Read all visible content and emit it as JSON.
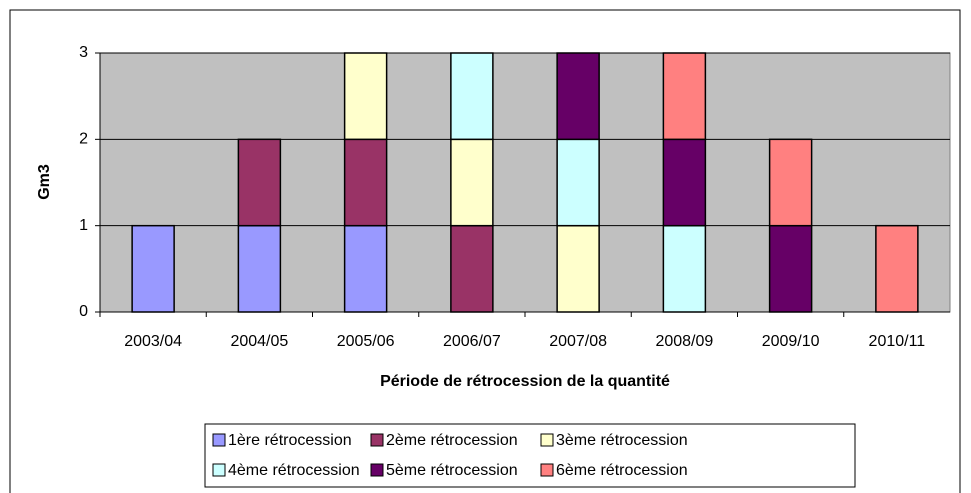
{
  "chart_data": {
    "type": "bar",
    "stacked": true,
    "xlabel": "Période de rétrocession de la quantité",
    "ylabel": "Gm3",
    "categories": [
      "2003/04",
      "2004/05",
      "2005/06",
      "2006/07",
      "2007/08",
      "2008/09",
      "2009/10",
      "2010/11"
    ],
    "series": [
      {
        "name": "1ère rétrocession",
        "color": "#9999ff",
        "values": [
          1,
          1,
          1,
          0,
          0,
          0,
          0,
          0
        ]
      },
      {
        "name": "2ème rétrocession",
        "color": "#993366",
        "values": [
          0,
          1,
          1,
          1,
          0,
          0,
          0,
          0
        ]
      },
      {
        "name": "3ème rétrocession",
        "color": "#ffffcc",
        "values": [
          0,
          0,
          1,
          1,
          1,
          0,
          0,
          0
        ]
      },
      {
        "name": "4ème rétrocession",
        "color": "#ccffff",
        "values": [
          0,
          0,
          0,
          1,
          1,
          1,
          0,
          0
        ]
      },
      {
        "name": "5ème rétrocession",
        "color": "#660066",
        "values": [
          0,
          0,
          0,
          0,
          1,
          1,
          1,
          0
        ]
      },
      {
        "name": "6ème rétrocession",
        "color": "#ff8080",
        "values": [
          0,
          0,
          0,
          0,
          0,
          1,
          1,
          1
        ]
      }
    ],
    "ylim": [
      0,
      3
    ],
    "yticks": [
      0,
      1,
      2,
      3
    ],
    "grid": true,
    "legend": "bottom"
  }
}
